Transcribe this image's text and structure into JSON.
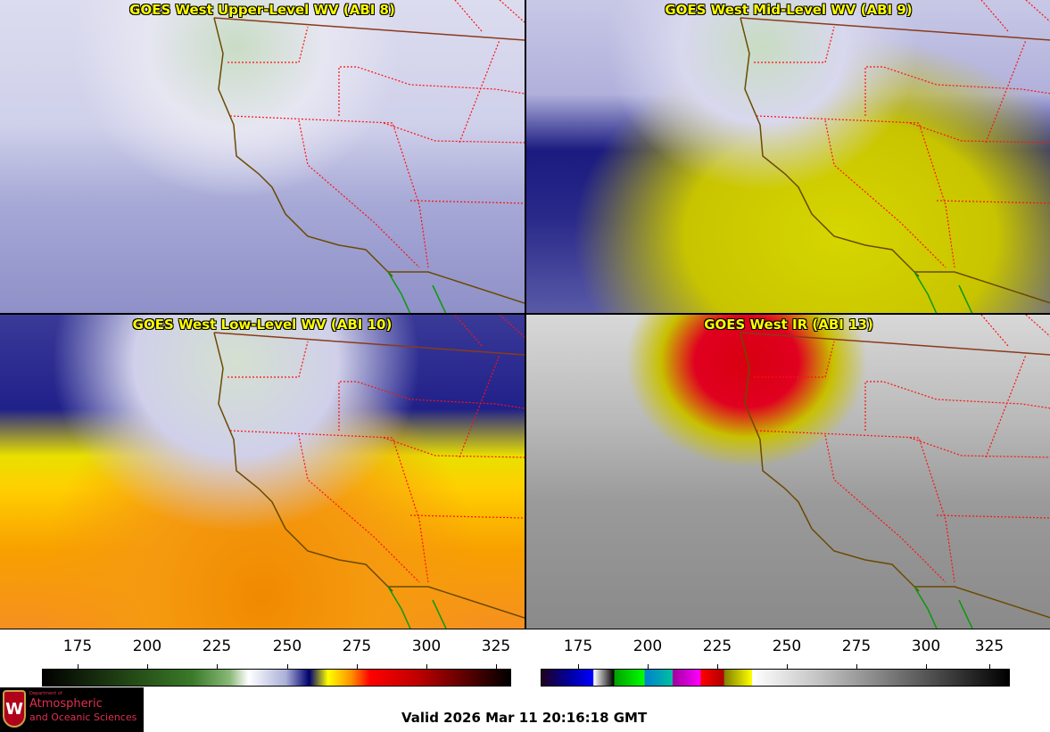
{
  "panels": [
    {
      "title": "GOES West Upper-Level WV (ABI 8)"
    },
    {
      "title": "GOES West Mid-Level WV (ABI 9)"
    },
    {
      "title": "GOES West Low-Level WV (ABI 10)"
    },
    {
      "title": "GOES West IR (ABI 13)"
    }
  ],
  "colorbars": [
    {
      "name": "water-vapor",
      "ticks": [
        "175",
        "200",
        "225",
        "250",
        "275",
        "300",
        "325"
      ]
    },
    {
      "name": "infrared",
      "ticks": [
        "175",
        "200",
        "225",
        "250",
        "275",
        "300",
        "325"
      ]
    }
  ],
  "logo": {
    "small": "Department of",
    "line1": "Atmospheric",
    "line2": "and Oceanic Sciences",
    "crest": "W"
  },
  "valid_time": "Valid 2026 Mar 11 20:16:18 GMT"
}
